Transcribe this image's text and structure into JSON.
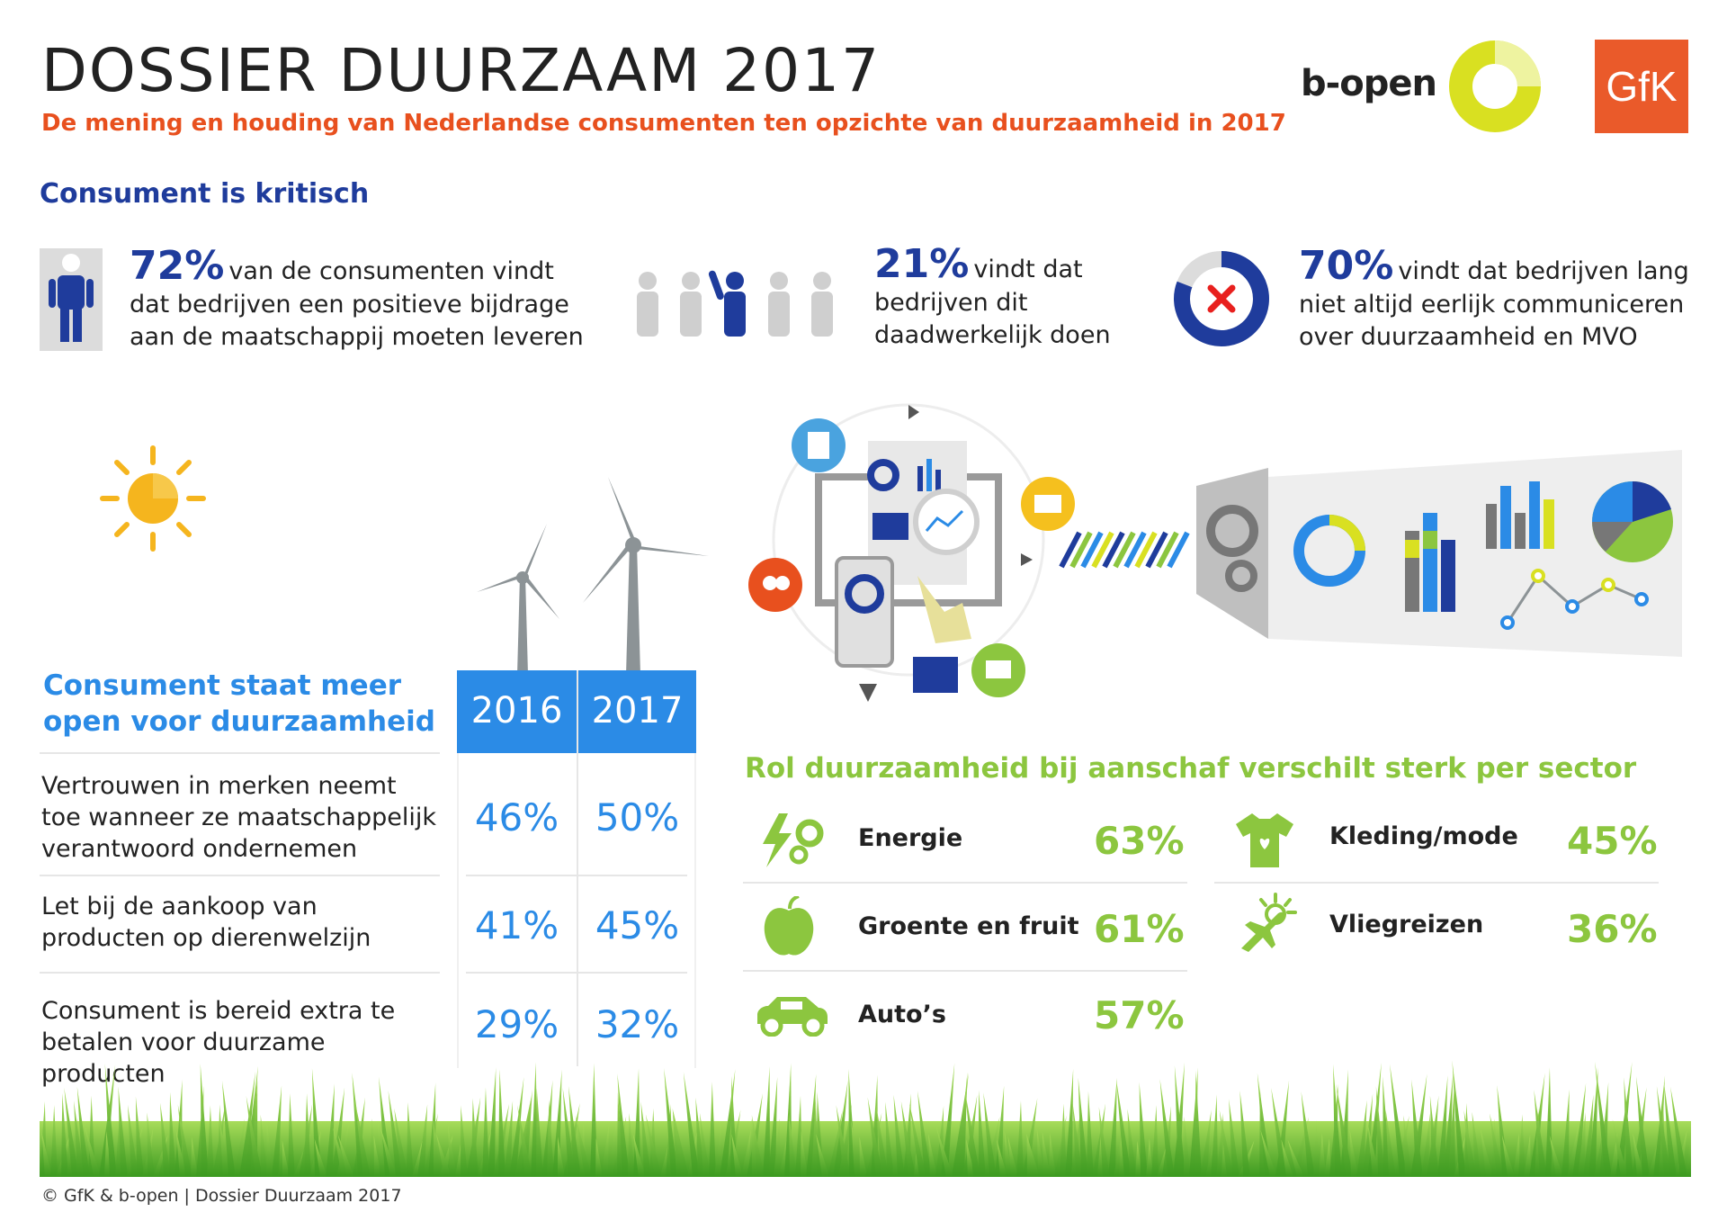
{
  "header": {
    "title": "DOSSIER DUURZAAM 2017",
    "subtitle": "De mening en houding van Nederlandse consumenten ten opzichte van duurzaamheid in 2017",
    "logo_bopen": "b-open",
    "logo_gfk": "GfK"
  },
  "critical": {
    "heading": "Consument is kritisch",
    "stats": [
      {
        "pct": "72%",
        "line1": "van de consumenten vindt",
        "line2": "dat bedrijven een positieve bijdrage",
        "line3": "aan de maatschappij moeten leveren"
      },
      {
        "pct": "21%",
        "line1": "vindt dat",
        "line2": "bedrijven dit",
        "line3": "daadwerkelijk doen"
      },
      {
        "pct": "70%",
        "line1": "vindt dat bedrijven lang",
        "line2": "niet altijd eerlijk communiceren",
        "line3": "over duurzaamheid en MVO"
      }
    ]
  },
  "open": {
    "heading_line1": "Consument staat meer",
    "heading_line2": "open voor duurzaamheid",
    "years": [
      "2016",
      "2017"
    ],
    "rows": [
      {
        "lines": [
          "Vertrouwen in merken neemt",
          "toe wanneer ze maatschappelijk",
          "verantwoord ondernemen"
        ],
        "v2016": "46%",
        "v2017": "50%"
      },
      {
        "lines": [
          "Let bij de aankoop van",
          "producten op dierenwelzijn"
        ],
        "v2016": "41%",
        "v2017": "45%"
      },
      {
        "lines": [
          "Consument is bereid extra te",
          "betalen voor duurzame producten"
        ],
        "v2016": "29%",
        "v2017": "32%"
      }
    ]
  },
  "sectors": {
    "heading": "Rol duurzaamheid bij aanschaf verschilt sterk per sector",
    "left": [
      {
        "label": "Energie",
        "pct": "63%",
        "icon": "energy-icon"
      },
      {
        "label": "Groente en fruit",
        "pct": "61%",
        "icon": "apple-icon"
      },
      {
        "label": "Auto’s",
        "pct": "57%",
        "icon": "car-icon"
      }
    ],
    "right": [
      {
        "label": "Kleding/mode",
        "pct": "45%",
        "icon": "shirt-icon"
      },
      {
        "label": "Vliegreizen",
        "pct": "36%",
        "icon": "plane-icon"
      }
    ]
  },
  "footer": "© GfK & b-open | Dossier Duurzaam 2017",
  "colors": {
    "blue": "#1f3c9c",
    "lightblue": "#2b8be6",
    "orange": "#e8501e",
    "green": "#8cc63f",
    "yellow": "#d9e021"
  }
}
